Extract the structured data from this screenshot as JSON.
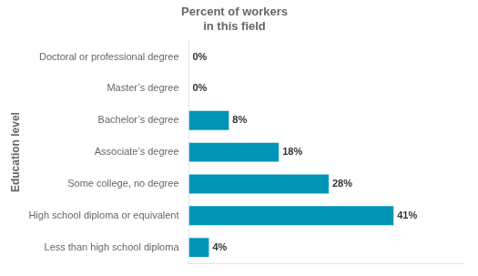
{
  "chart_data": {
    "type": "bar",
    "orientation": "horizontal",
    "title": "Percent of workers\nin this field",
    "ylabel": "Education level",
    "categories": [
      "Doctoral or professional degree",
      "Master’s degree",
      "Bachelor’s degree",
      "Associate’s degree",
      "Some college, no degree",
      "High school diploma or equivalent",
      "Less than high school diploma"
    ],
    "values": [
      0,
      0,
      8,
      18,
      28,
      41,
      4
    ],
    "value_labels": [
      "0%",
      "0%",
      "8%",
      "18%",
      "28%",
      "41%",
      "4%"
    ],
    "data_labels": true,
    "color": "#0095b6",
    "xlim": [
      0,
      55
    ],
    "grid": false,
    "tick_labels": "y"
  }
}
